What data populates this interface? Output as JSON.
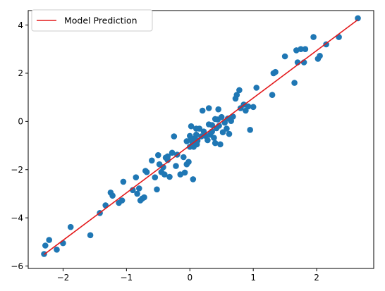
{
  "chart_data": {
    "type": "scatter",
    "title": "",
    "xlabel": "",
    "ylabel": "",
    "xlim": [
      -2.55,
      2.9
    ],
    "ylim": [
      -6.1,
      4.6
    ],
    "xticks": [
      -2,
      -1,
      0,
      1,
      2
    ],
    "yticks": [
      -6,
      -4,
      -2,
      0,
      2,
      4
    ],
    "grid": false,
    "legend_position": "top-left",
    "series": [
      {
        "kind": "scatter",
        "color": "#1f77b4",
        "points": [
          [
            -2.3,
            -5.5
          ],
          [
            -2.28,
            -5.15
          ],
          [
            -2.22,
            -4.92
          ],
          [
            -2.1,
            -5.32
          ],
          [
            -2.0,
            -5.05
          ],
          [
            -1.88,
            -4.38
          ],
          [
            -1.57,
            -4.72
          ],
          [
            -1.42,
            -3.8
          ],
          [
            -1.33,
            -3.48
          ],
          [
            -1.25,
            -2.95
          ],
          [
            -1.22,
            -3.08
          ],
          [
            -1.12,
            -3.38
          ],
          [
            -1.07,
            -3.28
          ],
          [
            -1.05,
            -2.5
          ],
          [
            -0.9,
            -2.85
          ],
          [
            -0.85,
            -2.32
          ],
          [
            -0.83,
            -3.0
          ],
          [
            -0.8,
            -2.78
          ],
          [
            -0.78,
            -3.28
          ],
          [
            -0.75,
            -3.2
          ],
          [
            -0.72,
            -3.15
          ],
          [
            -0.68,
            -2.1
          ],
          [
            -0.6,
            -1.62
          ],
          [
            -0.55,
            -2.32
          ],
          [
            -0.52,
            -2.82
          ],
          [
            -0.5,
            -1.4
          ],
          [
            -0.48,
            -1.78
          ],
          [
            -0.45,
            -2.1
          ],
          [
            -0.42,
            -1.9
          ],
          [
            -0.4,
            -2.2
          ],
          [
            -0.38,
            -1.5
          ],
          [
            -0.35,
            -1.6
          ],
          [
            -0.32,
            -2.3
          ],
          [
            -0.28,
            -1.3
          ],
          [
            -0.25,
            -0.62
          ],
          [
            -0.22,
            -1.85
          ],
          [
            -0.2,
            -1.38
          ],
          [
            -0.15,
            -2.2
          ],
          [
            -0.1,
            -1.48
          ],
          [
            -0.08,
            -2.12
          ],
          [
            -0.05,
            -1.78
          ],
          [
            -0.02,
            -1.68
          ],
          [
            0.0,
            -1.05
          ],
          [
            0.0,
            -0.6
          ],
          [
            0.02,
            -0.2
          ],
          [
            0.02,
            -0.72
          ],
          [
            0.04,
            -0.88
          ],
          [
            0.05,
            -2.4
          ],
          [
            0.06,
            -1.05
          ],
          [
            0.08,
            -0.7
          ],
          [
            0.1,
            -0.55
          ],
          [
            0.11,
            -0.95
          ],
          [
            0.12,
            -0.8
          ],
          [
            0.15,
            -0.3
          ],
          [
            0.18,
            -0.62
          ],
          [
            0.22,
            -0.42
          ],
          [
            0.25,
            -0.6
          ],
          [
            0.28,
            -0.78
          ],
          [
            0.3,
            -0.12
          ],
          [
            0.32,
            -0.55
          ],
          [
            0.35,
            -0.42
          ],
          [
            0.38,
            -0.68
          ],
          [
            0.4,
            -0.9
          ],
          [
            0.42,
            -0.28
          ],
          [
            0.44,
            0.08
          ],
          [
            0.46,
            -0.18
          ],
          [
            0.48,
            -0.95
          ],
          [
            0.5,
            0.18
          ],
          [
            0.52,
            -0.45
          ],
          [
            0.55,
            -0.05
          ],
          [
            0.58,
            -0.3
          ],
          [
            0.6,
            0.12
          ],
          [
            0.62,
            -0.52
          ],
          [
            0.65,
            0.02
          ],
          [
            0.68,
            0.2
          ],
          [
            0.72,
            0.95
          ],
          [
            0.74,
            1.1
          ],
          [
            0.78,
            1.3
          ],
          [
            0.8,
            0.55
          ],
          [
            0.85,
            0.7
          ],
          [
            0.88,
            0.45
          ],
          [
            0.92,
            0.62
          ],
          [
            0.95,
            -0.35
          ],
          [
            1.0,
            0.6
          ],
          [
            1.05,
            1.4
          ],
          [
            0.4,
            0.1
          ],
          [
            0.45,
            0.5
          ],
          [
            0.2,
            0.45
          ],
          [
            0.3,
            0.55
          ],
          [
            -0.05,
            -0.82
          ],
          [
            1.3,
            1.1
          ],
          [
            1.32,
            2.0
          ],
          [
            1.35,
            2.05
          ],
          [
            1.5,
            2.7
          ],
          [
            1.65,
            1.6
          ],
          [
            1.68,
            2.95
          ],
          [
            1.7,
            2.45
          ],
          [
            1.75,
            3.0
          ],
          [
            1.8,
            2.45
          ],
          [
            1.82,
            3.0
          ],
          [
            1.95,
            3.5
          ],
          [
            2.02,
            2.6
          ],
          [
            2.05,
            2.72
          ],
          [
            2.15,
            3.2
          ],
          [
            2.35,
            3.5
          ],
          [
            2.65,
            4.28
          ],
          [
            -0.7,
            -2.05
          ],
          [
            -0.35,
            -1.45
          ],
          [
            0.35,
            -0.15
          ],
          [
            0.1,
            -0.3
          ]
        ]
      },
      {
        "kind": "line",
        "name": "Model Prediction",
        "color": "#e31a1c",
        "x": [
          -2.3,
          2.65
        ],
        "y": [
          -5.52,
          4.22
        ]
      }
    ]
  }
}
